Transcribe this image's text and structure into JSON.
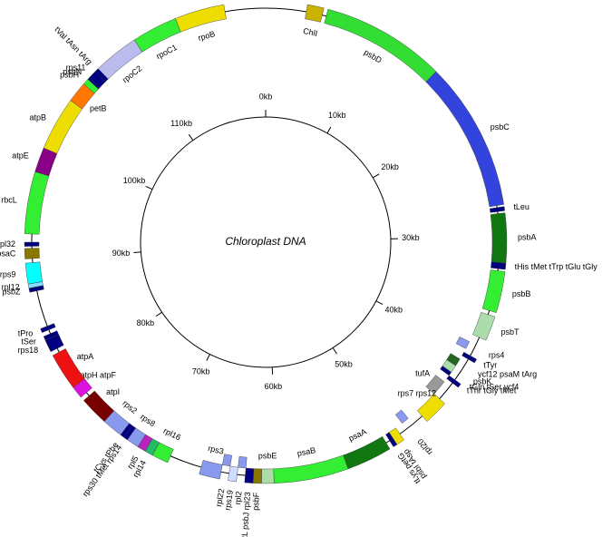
{
  "title": "Chloroplast DNA",
  "ruler": {
    "ticks": [
      "0kb",
      "10kb",
      "20kb",
      "30kb",
      "40kb",
      "50kb",
      "60kb",
      "70kb",
      "80kb",
      "90kb",
      "100kb",
      "110kb"
    ]
  },
  "genes": [
    {
      "label": "ChlI"
    },
    {
      "label": "psbD"
    },
    {
      "label": "psbC"
    },
    {
      "label": "tLeu"
    },
    {
      "label": "psbA"
    },
    {
      "label": "tHis  tMet  tTrp  tGlu  tGly"
    },
    {
      "label": "psbB"
    },
    {
      "label": "psbT"
    },
    {
      "label": "rps4"
    },
    {
      "label": "tTyr"
    },
    {
      "label": "ycf12  psaM  tArg"
    },
    {
      "label": "psbK"
    },
    {
      "label": "tGln  tSer  ycf4"
    },
    {
      "label": "tThr  tGly  tMet"
    },
    {
      "label": "tufA"
    },
    {
      "label": "rps7  rps12"
    },
    {
      "label": "rpl20"
    },
    {
      "label": "psbI  tAsp"
    },
    {
      "label": "tLys  petG"
    },
    {
      "label": "psaA"
    },
    {
      "label": "psaB"
    },
    {
      "label": "psbE"
    },
    {
      "label": "psbF"
    },
    {
      "label": "petL  psbJ  rpl23"
    },
    {
      "label": "rpl2"
    },
    {
      "label": "rps19"
    },
    {
      "label": "rpl22"
    },
    {
      "label": "rps3"
    },
    {
      "label": "rpl16"
    },
    {
      "label": "rpl14"
    },
    {
      "label": "rpl5"
    },
    {
      "label": "rps8"
    },
    {
      "label": "rps30  tMet  rps14"
    },
    {
      "label": "tCys  tPhe"
    },
    {
      "label": "rps2"
    },
    {
      "label": "atpI"
    },
    {
      "label": "atpH  atpF"
    },
    {
      "label": "atpA"
    },
    {
      "label": "rps18"
    },
    {
      "label": "tSer"
    },
    {
      "label": "tPro"
    },
    {
      "label": "psbZ"
    },
    {
      "label": "rpl12"
    },
    {
      "label": "rps9"
    },
    {
      "label": "psaC"
    },
    {
      "label": "rpl32"
    },
    {
      "label": "rbcL"
    },
    {
      "label": "atpE"
    },
    {
      "label": "atpB"
    },
    {
      "label": "petB"
    },
    {
      "label": "psbH"
    },
    {
      "label": "psbN"
    },
    {
      "label": "rps11"
    },
    {
      "label": "tVal  tAsn  tArg"
    },
    {
      "label": "rpoC2"
    },
    {
      "label": "rpoC1"
    },
    {
      "label": "rpoB"
    }
  ]
}
